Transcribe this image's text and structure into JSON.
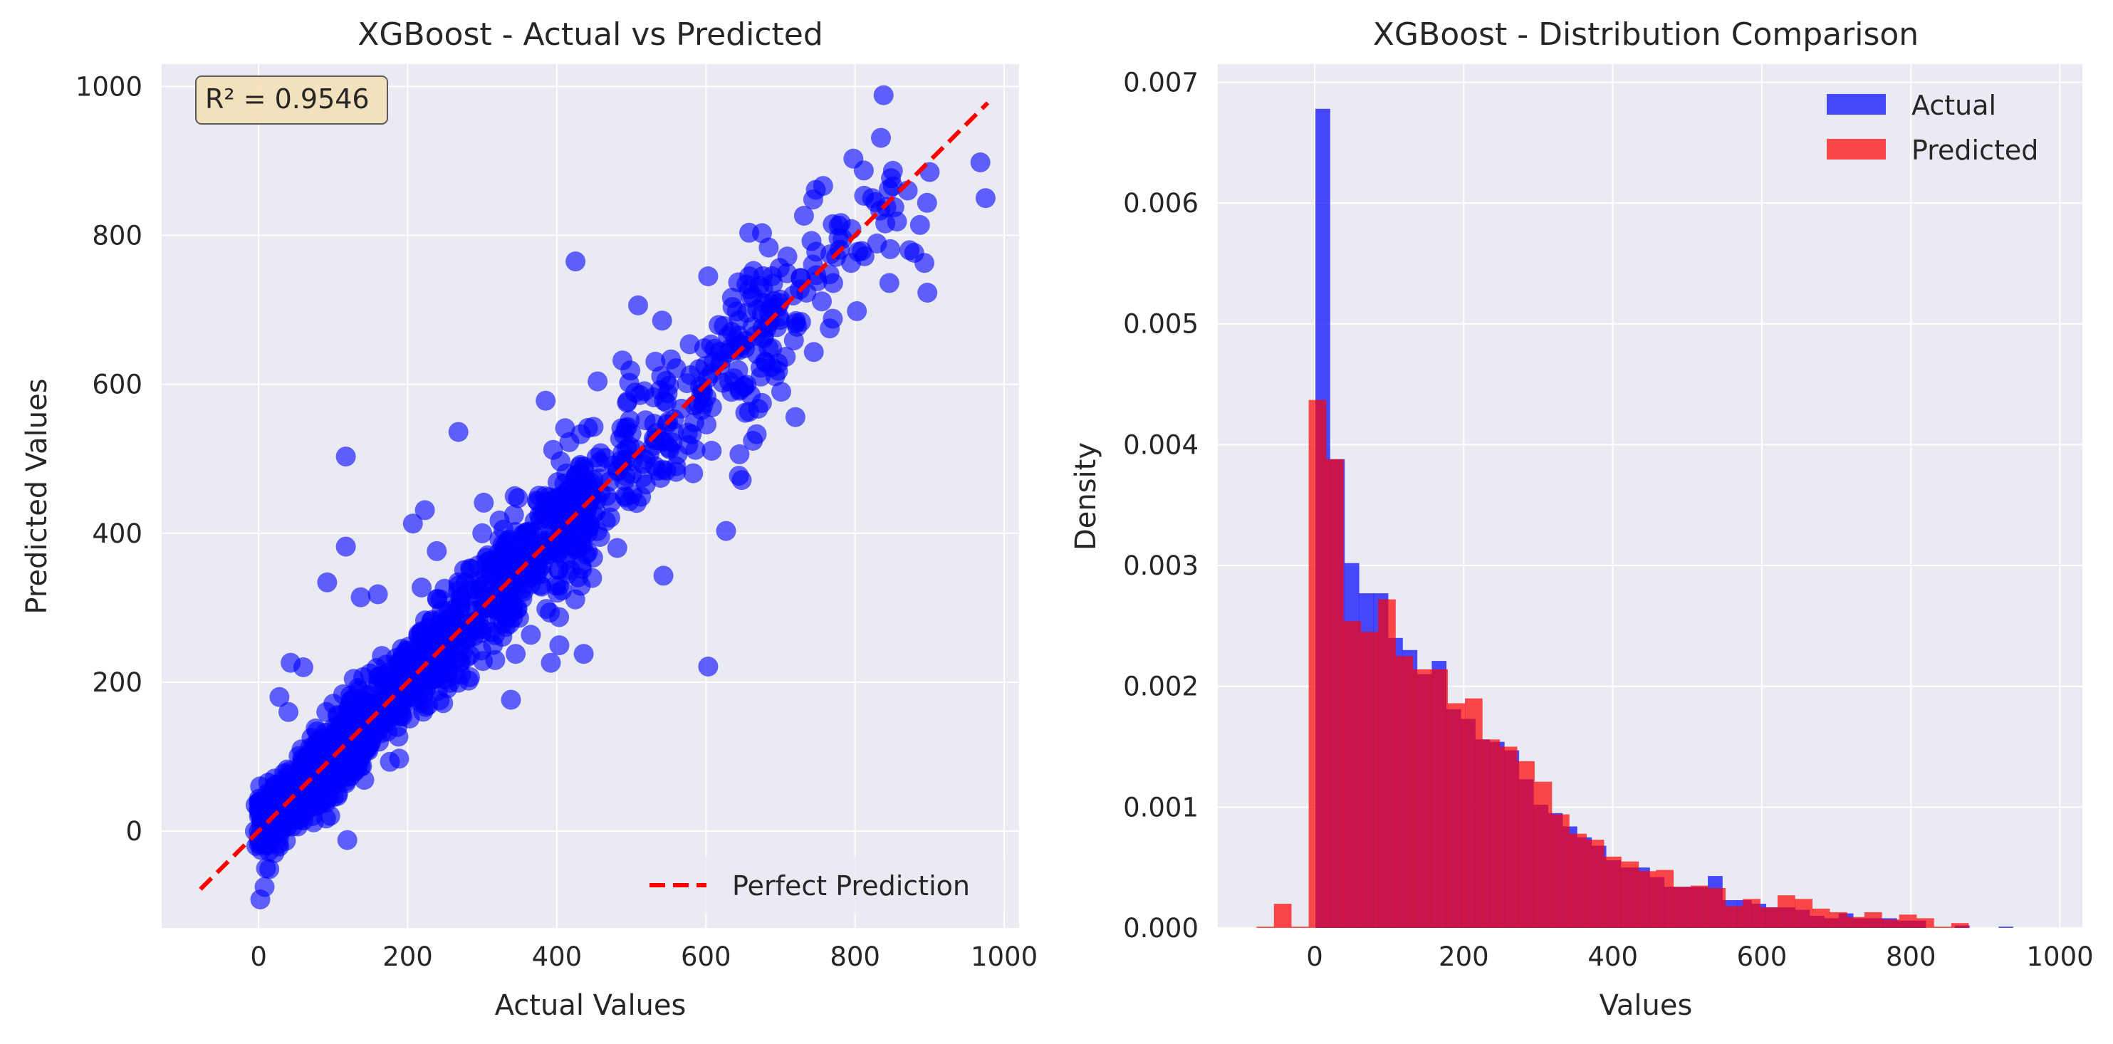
{
  "figure": {
    "background": "#ffffff",
    "axes_face": "#eaeaf2",
    "grid_color": "#ffffff"
  },
  "chart_data": [
    {
      "type": "scatter",
      "title": "XGBoost - Actual vs Predicted",
      "xlabel": "Actual Values",
      "ylabel": "Predicted Values",
      "xlim": [
        -130,
        1020
      ],
      "ylim": [
        -130,
        1030
      ],
      "xticks": [
        0,
        200,
        400,
        600,
        800,
        1000
      ],
      "yticks": [
        0,
        200,
        400,
        600,
        800,
        1000
      ],
      "xtick_labels": [
        "0",
        "200",
        "400",
        "600",
        "800",
        "1000"
      ],
      "ytick_labels": [
        "0",
        "200",
        "400",
        "600",
        "800",
        "1000"
      ],
      "grid": true,
      "point_color": "#0000ff",
      "point_alpha": 0.6,
      "annotation": "R² = 0.9546",
      "annotation_box_color": "#f5deb3",
      "reference_line": {
        "name": "Perfect Prediction",
        "x": [
          -78,
          978
        ],
        "y": [
          -78,
          978
        ],
        "color": "#ff0000",
        "style": "dashed"
      },
      "legend": {
        "position": "lower right",
        "entries": [
          "Perfect Prediction"
        ]
      },
      "outliers": [
        [
          117,
          503
        ],
        [
          425,
          765
        ],
        [
          509,
          706
        ],
        [
          603,
          221
        ],
        [
          627,
          403
        ],
        [
          543,
          343
        ],
        [
          385,
          578
        ],
        [
          268,
          536
        ],
        [
          117,
          382
        ],
        [
          92,
          334
        ],
        [
          43,
          226
        ],
        [
          119,
          -12
        ],
        [
          975,
          850
        ],
        [
          968,
          898
        ],
        [
          897,
          723
        ],
        [
          893,
          763
        ],
        [
          873,
          780
        ],
        [
          809,
          779
        ],
        [
          842,
          838
        ],
        [
          823,
          850
        ],
        [
          603,
          745
        ],
        [
          658,
          745
        ],
        [
          436,
          238
        ],
        [
          392,
          226
        ],
        [
          540,
          611
        ],
        [
          488,
          632
        ],
        [
          432,
          533
        ],
        [
          348,
          447
        ],
        [
          302,
          441
        ],
        [
          285,
          352
        ],
        [
          207,
          413
        ],
        [
          160,
          318
        ],
        [
          137,
          314
        ],
        [
          8,
          -75
        ],
        [
          -5,
          0
        ],
        [
          -4,
          35
        ],
        [
          -3,
          -20
        ],
        [
          2,
          60
        ],
        [
          10,
          -50
        ],
        [
          60,
          220
        ],
        [
          40,
          160
        ],
        [
          28,
          180
        ],
        [
          223,
          431
        ],
        [
          239,
          376
        ],
        [
          151,
          120
        ],
        [
          176,
          93
        ],
        [
          210,
          180
        ],
        [
          395,
          512
        ],
        [
          513,
          449
        ],
        [
          540,
          524
        ],
        [
          645,
          506
        ],
        [
          701,
          590
        ],
        [
          720,
          556
        ],
        [
          707,
          637
        ],
        [
          766,
          675
        ],
        [
          846,
          736
        ],
        [
          887,
          814
        ],
        [
          900,
          885
        ],
        [
          770,
          815
        ],
        [
          718,
          659
        ],
        [
          668,
          533
        ],
        [
          586,
          512
        ],
        [
          497,
          443
        ],
        [
          458,
          395
        ],
        [
          560,
          490
        ],
        [
          300,
          400
        ]
      ]
    },
    {
      "type": "bar",
      "subtype": "overlaid_histogram",
      "title": "XGBoost - Distribution Comparison",
      "xlabel": "Values",
      "ylabel": "Density",
      "xlim": [
        -130,
        1030
      ],
      "ylim": [
        0,
        0.00715
      ],
      "xticks": [
        0,
        200,
        400,
        600,
        800,
        1000
      ],
      "yticks": [
        0,
        0.001,
        0.002,
        0.003,
        0.004,
        0.005,
        0.006,
        0.007
      ],
      "xtick_labels": [
        "0",
        "200",
        "400",
        "600",
        "800",
        "1000"
      ],
      "ytick_labels": [
        "0.000",
        "0.001",
        "0.002",
        "0.003",
        "0.004",
        "0.005",
        "0.006",
        "0.007"
      ],
      "grid": true,
      "legend": {
        "position": "upper right"
      },
      "series": [
        {
          "name": "Actual",
          "color": "#0000ff",
          "alpha": 0.7,
          "bin_start": 1,
          "bin_width": 19.5,
          "values": [
            0.00678,
            0.00388,
            0.00302,
            0.00277,
            0.00277,
            0.0024,
            0.0023,
            0.0021,
            0.00221,
            0.00181,
            0.00173,
            0.00156,
            0.00154,
            0.00147,
            0.00123,
            0.00102,
            0.00095,
            0.00084,
            0.00075,
            0.00068,
            0.00056,
            0.0005,
            0.0005,
            0.00042,
            0.00034,
            0.00034,
            0.00034,
            0.00043,
            0.00023,
            0.00023,
            0.0002,
            0.00017,
            0.00017,
            0.00015,
            0.0001,
            8e-05,
            0.00012,
            8e-05,
            8e-05,
            8e-05,
            6e-05,
            6e-05,
            0.0,
            0.0,
            2e-05,
            0.0,
            0.0,
            1e-05
          ]
        },
        {
          "name": "Predicted",
          "color": "#ff0000",
          "alpha": 0.7,
          "bin_start": -78,
          "bin_width": 23.3,
          "values": [
            1e-05,
            0.0002,
            1e-05,
            0.00437,
            0.00388,
            0.00254,
            0.00245,
            0.00272,
            0.00225,
            0.00214,
            0.00214,
            0.00186,
            0.0019,
            0.00156,
            0.0015,
            0.00138,
            0.00121,
            0.00094,
            0.00078,
            0.00073,
            0.00059,
            0.00055,
            0.00047,
            0.00048,
            0.00034,
            0.00035,
            0.00033,
            0.00018,
            0.00024,
            0.00017,
            0.00027,
            0.00024,
            0.00016,
            0.00013,
            9e-05,
            0.00013,
            7e-05,
            0.00011,
            8e-05,
            1e-05,
            4e-05
          ]
        }
      ]
    }
  ]
}
